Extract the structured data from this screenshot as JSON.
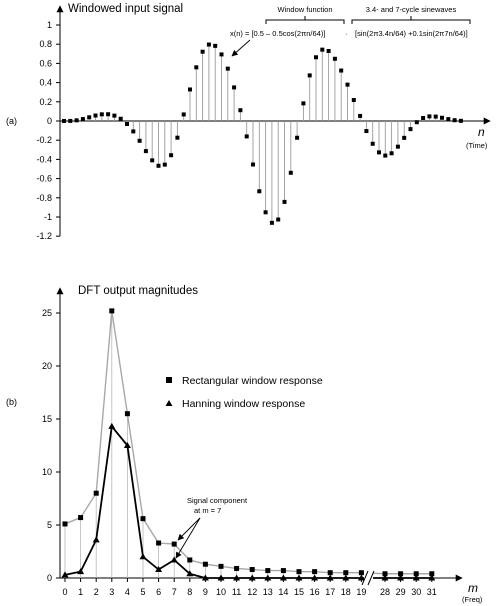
{
  "chart_data": [
    {
      "panel_label": "(a)",
      "type": "scatter",
      "title": "Windowed input signal",
      "xlabel": "n",
      "xlabel_note": "(Time)",
      "ylim": [
        -1.2,
        1.0
      ],
      "yticks": [
        "1",
        "0.8",
        "0.6",
        "0.4",
        "0.2",
        "0",
        "-0.2",
        "-0.4",
        "-0.6",
        "-0.8",
        "-1",
        "-1.2"
      ],
      "annotations": {
        "bracket_left": "Window function",
        "bracket_right": "3.4- and 7-cycle sinewaves",
        "formula_left": "x(n) = [0.5 – 0.5cos(2πn/64)]",
        "formula_mid": "·",
        "formula_right": "[sin(2π3.4n/64) +0.1sin(2π7n/64)]"
      }
    },
    {
      "panel_label": "(b)",
      "type": "line",
      "title": "DFT output magnitudes",
      "xlabel": "m",
      "xlabel_note": "(Freq)",
      "ylim": [
        0,
        25
      ],
      "yticks": [
        "0",
        "5",
        "10",
        "15",
        "20",
        "25"
      ],
      "categories": [
        "0",
        "1",
        "2",
        "3",
        "4",
        "5",
        "6",
        "7",
        "8",
        "9",
        "10",
        "11",
        "12",
        "13",
        "14",
        "15",
        "16",
        "17",
        "18",
        "19",
        "28",
        "29",
        "30",
        "31"
      ],
      "series": [
        {
          "name": "Rectangular window response",
          "marker": "square",
          "values": [
            5.1,
            5.7,
            8.0,
            25.2,
            15.5,
            5.6,
            3.3,
            3.2,
            1.7,
            1.3,
            1.1,
            0.9,
            0.8,
            0.7,
            0.7,
            0.6,
            0.6,
            0.5,
            0.5,
            0.5,
            0.4,
            0.4,
            0.4,
            0.4
          ]
        },
        {
          "name": "Hanning window response",
          "marker": "triangle",
          "values": [
            0.3,
            0.6,
            3.6,
            14.3,
            12.5,
            2.0,
            0.8,
            1.7,
            0.4,
            0,
            0,
            0,
            0,
            0,
            0,
            0,
            0,
            0,
            0,
            0,
            0,
            0,
            0,
            0
          ]
        }
      ],
      "annotations": {
        "signal_line1": "Signal component",
        "signal_line2": "at m = 7"
      }
    }
  ]
}
